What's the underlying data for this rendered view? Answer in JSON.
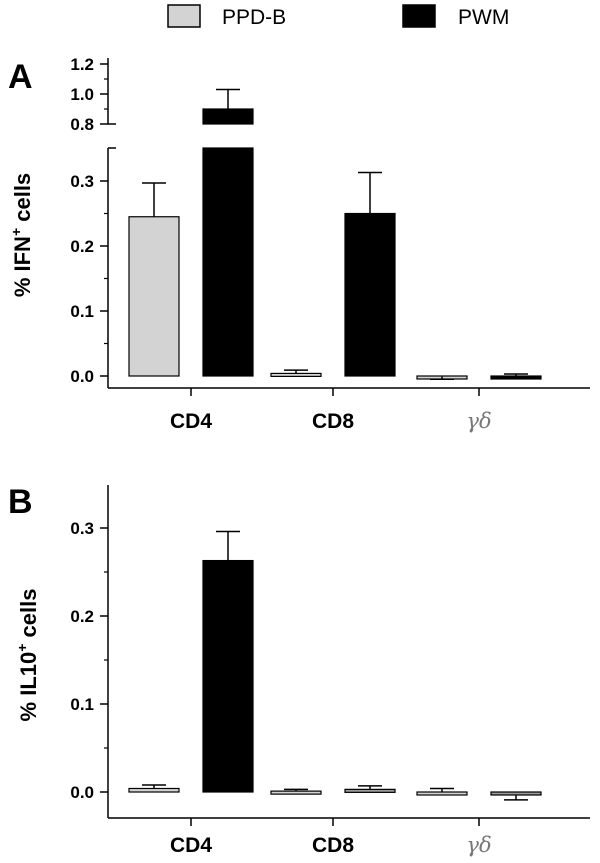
{
  "legend": {
    "items": [
      {
        "label": "PPD-B",
        "color": "#d3d3d3"
      },
      {
        "label": "PWM",
        "color": "#000000"
      }
    ]
  },
  "chart_data": [
    {
      "panel": "A",
      "type": "bar",
      "ylabel_main": "% IFN",
      "ylabel_sup": "+",
      "ylabel_tail": " cells",
      "categories": [
        "CD4",
        "CD8",
        "γδ"
      ],
      "y_axis_break": true,
      "lower_ylim": [
        0.0,
        0.35
      ],
      "upper_ylim": [
        0.8,
        1.2
      ],
      "lower_ticks": [
        "0.0",
        "0.1",
        "0.2",
        "0.3"
      ],
      "upper_ticks": [
        "0.8",
        "1.0",
        "1.2"
      ],
      "series": [
        {
          "name": "PPD-B",
          "values": [
            0.245,
            0.004,
            -0.001
          ],
          "errors": [
            0.052,
            0.005,
            0.004
          ]
        },
        {
          "name": "PWM",
          "values": [
            0.9,
            0.25,
            0.0
          ],
          "errors": [
            0.13,
            0.063,
            0.003
          ]
        }
      ]
    },
    {
      "panel": "B",
      "type": "bar",
      "ylabel_main": "% IL10",
      "ylabel_sup": "+",
      "ylabel_tail": " cells",
      "categories": [
        "CD4",
        "CD8",
        "γδ"
      ],
      "ylim": [
        0.0,
        0.33
      ],
      "ticks": [
        "0.0",
        "0.1",
        "0.2",
        "0.3"
      ],
      "series": [
        {
          "name": "PPD-B",
          "values": [
            0.004,
            0.001,
            0.0
          ],
          "errors": [
            0.004,
            0.002,
            0.004
          ]
        },
        {
          "name": "PWM",
          "values": [
            0.263,
            0.003,
            -0.003
          ],
          "errors": [
            0.033,
            0.004,
            0.006
          ]
        }
      ]
    }
  ]
}
